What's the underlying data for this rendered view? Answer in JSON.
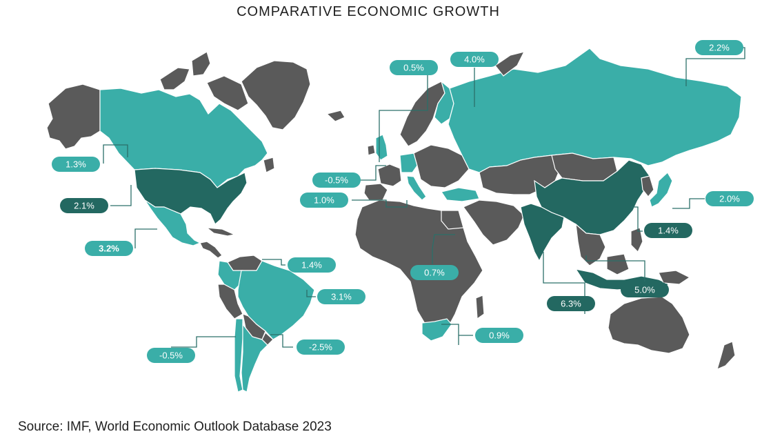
{
  "title": "COMPARATIVE ECONOMIC GROWTH",
  "source": "Source: IMF, World Economic Outlook Database 2023",
  "colors": {
    "teal": "#3aaea8",
    "dark_teal": "#236861",
    "gray": "#5a5a5a"
  },
  "labels": [
    {
      "id": "canada",
      "value": "1.3%",
      "style": "light"
    },
    {
      "id": "usa",
      "value": "2.1%",
      "style": "dark"
    },
    {
      "id": "mexico",
      "value": "3.2%",
      "style": "light",
      "bold": true
    },
    {
      "id": "colombia",
      "value": "1.4%",
      "style": "light"
    },
    {
      "id": "brazil",
      "value": "3.1%",
      "style": "light"
    },
    {
      "id": "chile",
      "value": "-0.5%",
      "style": "light"
    },
    {
      "id": "argentina",
      "value": "-2.5%",
      "style": "light"
    },
    {
      "id": "uk",
      "value": "0.5%",
      "style": "light"
    },
    {
      "id": "finland",
      "value": "4.0%",
      "style": "light"
    },
    {
      "id": "germany",
      "value": "-0.5%",
      "style": "light"
    },
    {
      "id": "italy",
      "value": "1.0%",
      "style": "light"
    },
    {
      "id": "egypt",
      "value": "0.7%",
      "style": "light"
    },
    {
      "id": "south-africa",
      "value": "0.9%",
      "style": "light"
    },
    {
      "id": "russia",
      "value": "2.2%",
      "style": "light"
    },
    {
      "id": "japan",
      "value": "2.0%",
      "style": "light"
    },
    {
      "id": "china",
      "value": "1.4%",
      "style": "dark"
    },
    {
      "id": "india",
      "value": "6.3%",
      "style": "dark"
    },
    {
      "id": "indonesia",
      "value": "5.0%",
      "style": "dark"
    }
  ]
}
